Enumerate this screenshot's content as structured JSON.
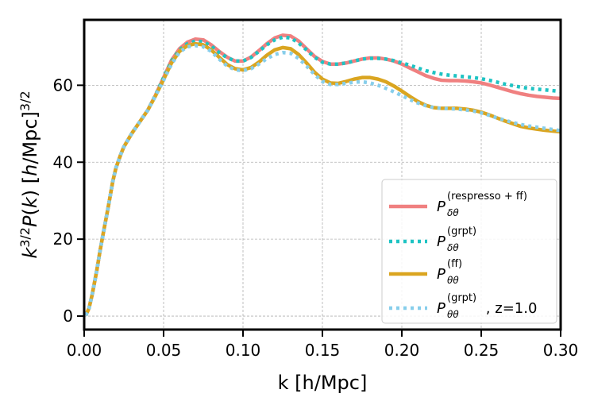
{
  "chart_data": {
    "type": "line",
    "title": "",
    "xlabel": "k [h/Mpc]",
    "ylabel": "k^{3/2}P(k)   [h/Mpc]^{3/2}",
    "xlim": [
      0.0,
      0.3
    ],
    "ylim": [
      -3.5,
      77
    ],
    "xticks": [
      0.0,
      0.05,
      0.1,
      0.15,
      0.2,
      0.25,
      0.3
    ],
    "xtick_labels": [
      "0.00",
      "0.05",
      "0.10",
      "0.15",
      "0.20",
      "0.25",
      "0.30"
    ],
    "yticks": [
      0,
      20,
      40,
      60
    ],
    "ytick_labels": [
      "0",
      "20",
      "40",
      "60"
    ],
    "grid": true,
    "legend_position": "lower-right",
    "series": [
      {
        "name": "P_{δθ}^{(respresso + ff)}",
        "color": "#f08080",
        "style": "solid",
        "x": [
          0.001,
          0.003,
          0.005,
          0.008,
          0.01,
          0.012,
          0.015,
          0.018,
          0.02,
          0.023,
          0.025,
          0.03,
          0.035,
          0.04,
          0.045,
          0.05,
          0.055,
          0.06,
          0.065,
          0.07,
          0.075,
          0.08,
          0.085,
          0.09,
          0.095,
          0.1,
          0.105,
          0.11,
          0.115,
          0.12,
          0.125,
          0.13,
          0.135,
          0.14,
          0.145,
          0.15,
          0.155,
          0.16,
          0.165,
          0.17,
          0.175,
          0.18,
          0.185,
          0.19,
          0.195,
          0.2,
          0.205,
          0.21,
          0.215,
          0.22,
          0.225,
          0.23,
          0.235,
          0.24,
          0.245,
          0.25,
          0.255,
          0.26,
          0.265,
          0.27,
          0.275,
          0.28,
          0.285,
          0.29,
          0.295,
          0.3
        ],
        "y": [
          0.2,
          2,
          5.5,
          12,
          17,
          21.5,
          28,
          35,
          38.5,
          42,
          44,
          47.5,
          50.5,
          53.5,
          57.5,
          62,
          66.5,
          69.5,
          71.2,
          72,
          71.8,
          70.5,
          68.8,
          67.3,
          66.3,
          66.3,
          67.3,
          69,
          70.8,
          72.3,
          73,
          72.8,
          71.5,
          69.5,
          67.5,
          66.2,
          65.5,
          65.5,
          65.8,
          66.3,
          66.8,
          67.1,
          67.1,
          66.8,
          66.3,
          65.5,
          64.5,
          63.5,
          62.5,
          61.8,
          61.3,
          61.2,
          61.2,
          61.1,
          60.9,
          60.6,
          60.1,
          59.5,
          58.9,
          58.3,
          57.8,
          57.4,
          57.1,
          56.9,
          56.7,
          56.6
        ]
      },
      {
        "name": "P_{δθ}^{(grpt)}",
        "color": "#1ec3c3",
        "style": "dotted",
        "x": [
          0.001,
          0.003,
          0.005,
          0.008,
          0.01,
          0.012,
          0.015,
          0.018,
          0.02,
          0.023,
          0.025,
          0.03,
          0.035,
          0.04,
          0.045,
          0.05,
          0.055,
          0.06,
          0.065,
          0.07,
          0.075,
          0.08,
          0.085,
          0.09,
          0.095,
          0.1,
          0.105,
          0.11,
          0.115,
          0.12,
          0.125,
          0.13,
          0.135,
          0.14,
          0.145,
          0.15,
          0.155,
          0.16,
          0.165,
          0.17,
          0.175,
          0.18,
          0.185,
          0.19,
          0.195,
          0.2,
          0.205,
          0.21,
          0.215,
          0.22,
          0.225,
          0.23,
          0.235,
          0.24,
          0.245,
          0.25,
          0.255,
          0.26,
          0.265,
          0.27,
          0.275,
          0.28,
          0.285,
          0.29,
          0.295,
          0.3
        ],
        "y": [
          0.2,
          2,
          5.5,
          12,
          17,
          21.5,
          28,
          35,
          38.5,
          42,
          44,
          47.5,
          50.5,
          53.5,
          57.5,
          62,
          66.3,
          69.2,
          70.8,
          71.5,
          71.3,
          70.2,
          68.5,
          67.2,
          66.3,
          66.3,
          67.2,
          68.8,
          70.5,
          71.8,
          72.5,
          72.3,
          71,
          69.2,
          67.3,
          66,
          65.5,
          65.5,
          65.8,
          66.3,
          66.8,
          67,
          67,
          66.8,
          66.4,
          65.8,
          65.2,
          64.5,
          63.8,
          63.3,
          62.9,
          62.6,
          62.4,
          62.2,
          62,
          61.7,
          61.3,
          60.8,
          60.3,
          59.9,
          59.5,
          59.2,
          59,
          58.8,
          58.6,
          58.4
        ]
      },
      {
        "name": "P_{θθ}^{(ff)}",
        "color": "#daa520",
        "style": "solid",
        "x": [
          0.001,
          0.003,
          0.005,
          0.008,
          0.01,
          0.012,
          0.015,
          0.018,
          0.02,
          0.023,
          0.025,
          0.03,
          0.035,
          0.04,
          0.045,
          0.05,
          0.055,
          0.06,
          0.065,
          0.07,
          0.075,
          0.08,
          0.085,
          0.09,
          0.095,
          0.1,
          0.105,
          0.11,
          0.115,
          0.12,
          0.125,
          0.13,
          0.135,
          0.14,
          0.145,
          0.15,
          0.155,
          0.16,
          0.165,
          0.17,
          0.175,
          0.18,
          0.185,
          0.19,
          0.195,
          0.2,
          0.205,
          0.21,
          0.215,
          0.22,
          0.225,
          0.23,
          0.235,
          0.24,
          0.245,
          0.25,
          0.255,
          0.26,
          0.265,
          0.27,
          0.275,
          0.28,
          0.285,
          0.29,
          0.295,
          0.3
        ],
        "y": [
          0.2,
          2,
          5.5,
          12,
          17,
          21.5,
          28,
          35,
          38.5,
          42,
          44,
          47.5,
          50.5,
          53.5,
          57.3,
          61.5,
          65.8,
          68.8,
          70.3,
          70.8,
          70.5,
          69.2,
          67.3,
          65.4,
          64.3,
          64,
          64.6,
          66,
          67.8,
          69.2,
          69.8,
          69.5,
          68,
          65.8,
          63.4,
          61.6,
          60.6,
          60.5,
          61,
          61.6,
          62,
          62,
          61.6,
          60.9,
          59.8,
          58.5,
          57.1,
          55.8,
          54.8,
          54.2,
          54,
          54,
          54,
          53.8,
          53.5,
          53,
          52.3,
          51.5,
          50.7,
          50,
          49.3,
          48.9,
          48.6,
          48.3,
          48.1,
          47.9
        ]
      },
      {
        "name": "P_{θθ}^{(grpt)}, z=1.0",
        "color": "#87ceeb",
        "style": "dotted",
        "x": [
          0.001,
          0.003,
          0.005,
          0.008,
          0.01,
          0.012,
          0.015,
          0.018,
          0.02,
          0.023,
          0.025,
          0.03,
          0.035,
          0.04,
          0.045,
          0.05,
          0.055,
          0.06,
          0.065,
          0.07,
          0.075,
          0.08,
          0.085,
          0.09,
          0.095,
          0.1,
          0.105,
          0.11,
          0.115,
          0.12,
          0.125,
          0.13,
          0.135,
          0.14,
          0.145,
          0.15,
          0.155,
          0.16,
          0.165,
          0.17,
          0.175,
          0.18,
          0.185,
          0.19,
          0.195,
          0.2,
          0.205,
          0.21,
          0.215,
          0.22,
          0.225,
          0.23,
          0.235,
          0.24,
          0.245,
          0.25,
          0.255,
          0.26,
          0.265,
          0.27,
          0.275,
          0.28,
          0.285,
          0.29,
          0.295,
          0.3
        ],
        "y": [
          0.2,
          2,
          5.5,
          12,
          17,
          21.5,
          28,
          35,
          38.5,
          42,
          44,
          47.5,
          50.5,
          53.5,
          57.3,
          61.3,
          65.5,
          68.6,
          70,
          70.3,
          70,
          68.8,
          66.8,
          65,
          64,
          63.8,
          64.3,
          65.5,
          66.9,
          68,
          68.5,
          68.3,
          67,
          65,
          62.8,
          61,
          60.2,
          60.2,
          60.5,
          60.8,
          60.9,
          60.6,
          60,
          59.2,
          58.3,
          57.3,
          56.3,
          55.4,
          54.7,
          54.2,
          54,
          53.9,
          53.8,
          53.6,
          53.3,
          52.8,
          52.2,
          51.5,
          50.9,
          50.3,
          49.8,
          49.4,
          49.1,
          48.8,
          48.5,
          48.2
        ]
      }
    ],
    "legend": [
      {
        "base": "P",
        "sub": "δθ",
        "sup": "(respresso + ff)",
        "suffix": ""
      },
      {
        "base": "P",
        "sub": "δθ",
        "sup": "(grpt)",
        "suffix": ""
      },
      {
        "base": "P",
        "sub": "θθ",
        "sup": "(ff)",
        "suffix": ""
      },
      {
        "base": "P",
        "sub": "θθ",
        "sup": "(grpt)",
        "suffix": ", z=1.0"
      }
    ]
  }
}
